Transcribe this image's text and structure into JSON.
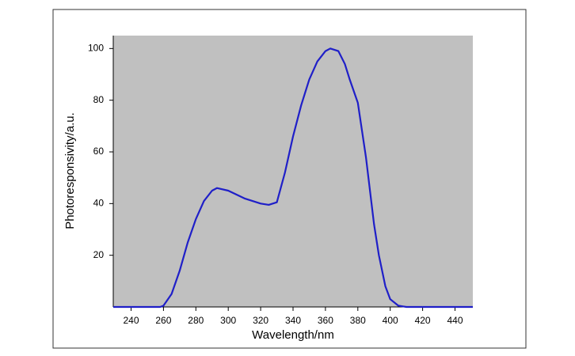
{
  "chart_data": {
    "type": "line",
    "x_label": "Wavelength/nm",
    "y_label": "Photoresponsivity/a.u.",
    "x": [
      229,
      240,
      250,
      258,
      260,
      265,
      270,
      275,
      280,
      285,
      290,
      293,
      300,
      305,
      310,
      315,
      320,
      325,
      330,
      335,
      340,
      345,
      350,
      355,
      360,
      363,
      368,
      372,
      375,
      380,
      385,
      390,
      393,
      397,
      400,
      405,
      410,
      430,
      451
    ],
    "series": [
      {
        "color": "#1f1fc8",
        "values": [
          0,
          0,
          0,
          0,
          0.5,
          5,
          14,
          25,
          34,
          41,
          45,
          46,
          45,
          43.5,
          42,
          41,
          40,
          39.5,
          40.5,
          52,
          66,
          78,
          88,
          95,
          99,
          100,
          99,
          94,
          88,
          79,
          58,
          32,
          20,
          8,
          3,
          0.5,
          0,
          0,
          0
        ]
      }
    ],
    "xlim": [
      229,
      451
    ],
    "ylim": [
      0,
      105
    ],
    "xticks": [
      240,
      260,
      280,
      300,
      320,
      340,
      360,
      380,
      400,
      420,
      440
    ],
    "yticks": [
      20,
      40,
      60,
      80,
      100
    ],
    "plot_background": "#c0c0c0"
  }
}
